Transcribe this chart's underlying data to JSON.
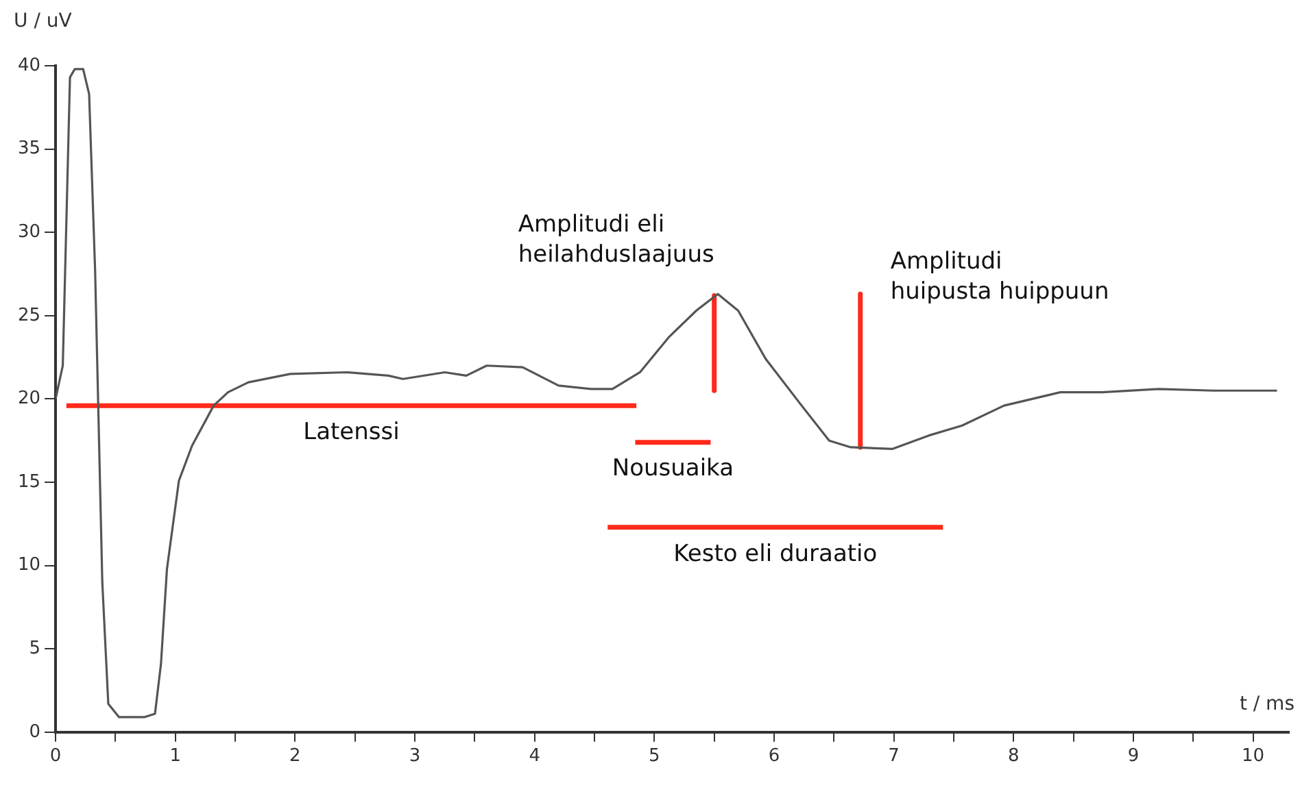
{
  "chart_data": {
    "type": "line",
    "xlabel": "t / ms",
    "ylabel": "U / uV",
    "xlim": [
      0,
      10.3
    ],
    "ylim": [
      0,
      40
    ],
    "xticks": [
      0,
      {
        "value": 0.5,
        "label": null
      },
      1,
      {
        "value": 1.5,
        "label": null
      },
      2,
      {
        "value": 2.5,
        "label": null
      },
      3,
      {
        "value": 3.5,
        "label": null
      },
      4,
      {
        "value": 4.5,
        "label": null
      },
      5,
      {
        "value": 5.5,
        "label": null
      },
      6,
      {
        "value": 6.5,
        "label": null
      },
      7,
      {
        "value": 7.5,
        "label": null
      },
      8,
      {
        "value": 8.5,
        "label": null
      },
      9,
      {
        "value": 9.5,
        "label": null
      },
      10
    ],
    "yticks": [
      0,
      5,
      10,
      15,
      20,
      25,
      30,
      35,
      40
    ],
    "grid": false,
    "legend": false,
    "marker": "none",
    "line_style": "solid",
    "series": [
      {
        "color": "#555555",
        "x": [
          0,
          0.06,
          0.12,
          0.16,
          0.23,
          0.28,
          0.33,
          0.39,
          0.44,
          0.53,
          0.74,
          0.83,
          0.88,
          0.93,
          1.03,
          1.14,
          1.32,
          1.44,
          1.61,
          1.96,
          2.43,
          2.78,
          2.9,
          3.25,
          3.43,
          3.6,
          3.9,
          4.2,
          4.47,
          4.65,
          4.88,
          5.12,
          5.35,
          5.53,
          5.7,
          5.93,
          6.23,
          6.46,
          6.64,
          6.99,
          7.29,
          7.57,
          7.92,
          8.39,
          8.74,
          9.21,
          9.67,
          10.2
        ],
        "values": [
          20,
          22,
          39.3,
          39.8,
          39.8,
          38.3,
          27.7,
          9,
          1.7,
          0.9,
          0.9,
          1.1,
          4.1,
          9.8,
          15.1,
          17.2,
          19.6,
          20.4,
          21,
          21.5,
          21.6,
          21.4,
          21.2,
          21.6,
          21.4,
          22,
          21.9,
          20.8,
          20.6,
          20.6,
          21.6,
          23.7,
          25.3,
          26.3,
          25.3,
          22.4,
          19.6,
          17.5,
          17.1,
          17,
          17.8,
          18.4,
          19.6,
          20.4,
          20.4,
          20.6,
          20.5,
          20.5
        ]
      },
      {
        "color": "#ff2a1a",
        "x": [
          0.09,
          4.85
        ],
        "values": [
          19.6,
          19.6
        ]
      },
      {
        "color": "#ff2a1a",
        "x": [
          4.84,
          5.47
        ],
        "values": [
          17.4,
          17.4
        ]
      },
      {
        "color": "#ff2a1a",
        "x": [
          4.61,
          7.41
        ],
        "values": [
          12.3,
          12.3
        ]
      },
      {
        "color": "#ff2a1a",
        "x": [
          5.5,
          5.5
        ],
        "values": [
          26.2,
          20.5
        ]
      },
      {
        "color": "#ff2a1a",
        "x": [
          6.72,
          6.72
        ],
        "values": [
          26.3,
          17.1
        ]
      }
    ],
    "annotations": [
      "Latenssi",
      "Nousuaika",
      "Kesto eli duraatio",
      "Amplitudi eli\nheilahduslaajuus",
      "Amplitudi\nhuipusta huippuun"
    ]
  }
}
